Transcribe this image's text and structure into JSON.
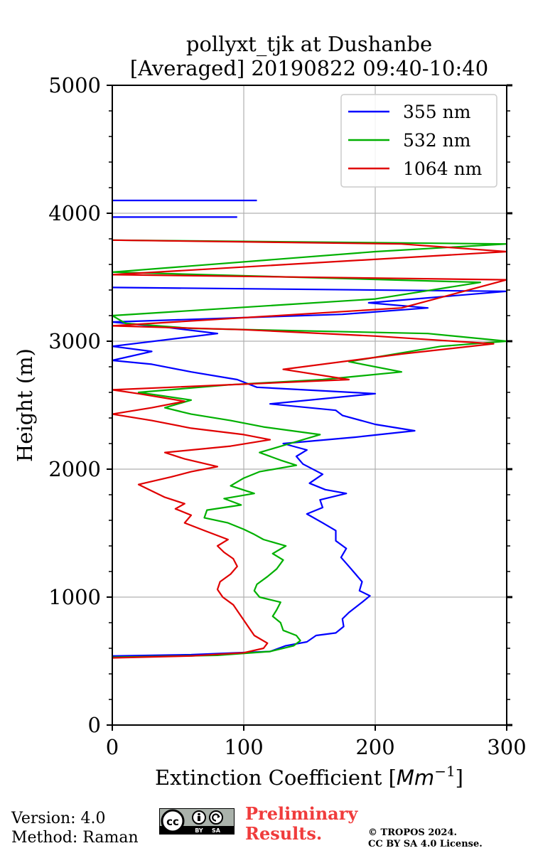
{
  "chart_data": {
    "type": "line",
    "title": "pollyxt_tjk at Dushanbe",
    "subtitle": "[Averaged] 20190822 09:40-10:40",
    "xlabel": "Extinction Coefficient",
    "xlabel_unit_base": "Mm",
    "xlabel_unit_exp": "−1",
    "ylabel": "Height (m)",
    "xlim": [
      0,
      300
    ],
    "ylim": [
      0,
      5000
    ],
    "xticks": [
      0,
      100,
      200,
      300
    ],
    "yticks": [
      0,
      1000,
      2000,
      3000,
      4000,
      5000
    ],
    "grid": true,
    "legend_position": "top-right",
    "series": [
      {
        "name": "355 nm",
        "color": "#0000ff",
        "points": [
          [
            0,
            540
          ],
          [
            60,
            550
          ],
          [
            120,
            575
          ],
          [
            132,
            620
          ],
          [
            148,
            650
          ],
          [
            155,
            700
          ],
          [
            170,
            720
          ],
          [
            176,
            770
          ],
          [
            175,
            830
          ],
          [
            180,
            880
          ],
          [
            190,
            960
          ],
          [
            196,
            1010
          ],
          [
            188,
            1050
          ],
          [
            190,
            1120
          ],
          [
            185,
            1180
          ],
          [
            180,
            1240
          ],
          [
            174,
            1310
          ],
          [
            178,
            1380
          ],
          [
            170,
            1440
          ],
          [
            170,
            1520
          ],
          [
            160,
            1580
          ],
          [
            148,
            1650
          ],
          [
            160,
            1700
          ],
          [
            158,
            1760
          ],
          [
            178,
            1810
          ],
          [
            162,
            1840
          ],
          [
            150,
            1890
          ],
          [
            160,
            1960
          ],
          [
            145,
            2040
          ],
          [
            140,
            2100
          ],
          [
            148,
            2150
          ],
          [
            130,
            2200
          ],
          [
            185,
            2250
          ],
          [
            230,
            2300
          ],
          [
            200,
            2350
          ],
          [
            175,
            2420
          ],
          [
            170,
            2460
          ],
          [
            120,
            2510
          ],
          [
            200,
            2590
          ],
          [
            110,
            2640
          ],
          [
            95,
            2700
          ],
          [
            60,
            2760
          ],
          [
            30,
            2820
          ],
          [
            0,
            2850
          ],
          [
            30,
            2920
          ],
          [
            0,
            2960
          ],
          [
            80,
            3060
          ],
          [
            40,
            3110
          ],
          [
            0,
            3150
          ],
          [
            175,
            3210
          ],
          [
            240,
            3260
          ],
          [
            195,
            3300
          ],
          [
            300,
            3390
          ],
          [
            0,
            3420
          ]
        ],
        "isolated_segments": [
          {
            "x": [
              0,
              95
            ],
            "y": 3970
          },
          {
            "x": [
              0,
              110
            ],
            "y": 4100
          }
        ]
      },
      {
        "name": "532 nm",
        "color": "#00b000",
        "points": [
          [
            0,
            530
          ],
          [
            80,
            545
          ],
          [
            120,
            575
          ],
          [
            138,
            620
          ],
          [
            143,
            660
          ],
          [
            140,
            700
          ],
          [
            130,
            740
          ],
          [
            128,
            800
          ],
          [
            122,
            850
          ],
          [
            125,
            900
          ],
          [
            128,
            960
          ],
          [
            112,
            1000
          ],
          [
            108,
            1050
          ],
          [
            110,
            1100
          ],
          [
            118,
            1160
          ],
          [
            125,
            1220
          ],
          [
            130,
            1290
          ],
          [
            122,
            1340
          ],
          [
            132,
            1400
          ],
          [
            115,
            1450
          ],
          [
            108,
            1490
          ],
          [
            100,
            1530
          ],
          [
            88,
            1580
          ],
          [
            70,
            1620
          ],
          [
            72,
            1680
          ],
          [
            98,
            1720
          ],
          [
            85,
            1770
          ],
          [
            108,
            1810
          ],
          [
            90,
            1870
          ],
          [
            100,
            1930
          ],
          [
            112,
            1980
          ],
          [
            140,
            2030
          ],
          [
            128,
            2070
          ],
          [
            112,
            2130
          ],
          [
            135,
            2200
          ],
          [
            158,
            2270
          ],
          [
            115,
            2330
          ],
          [
            90,
            2380
          ],
          [
            60,
            2430
          ],
          [
            40,
            2480
          ],
          [
            60,
            2540
          ],
          [
            20,
            2600
          ],
          [
            90,
            2660
          ],
          [
            160,
            2700
          ],
          [
            220,
            2760
          ],
          [
            180,
            2840
          ],
          [
            250,
            2960
          ],
          [
            300,
            3000
          ],
          [
            240,
            3060
          ],
          [
            60,
            3100
          ],
          [
            10,
            3140
          ],
          [
            0,
            3200
          ],
          [
            200,
            3330
          ],
          [
            280,
            3460
          ],
          [
            0,
            3540
          ],
          [
            200,
            3700
          ],
          [
            300,
            3760
          ],
          [
            0,
            3790
          ]
        ],
        "isolated_segments": []
      },
      {
        "name": "1064 nm",
        "color": "#e00000",
        "points": [
          [
            0,
            525
          ],
          [
            60,
            540
          ],
          [
            100,
            565
          ],
          [
            115,
            600
          ],
          [
            118,
            640
          ],
          [
            108,
            700
          ],
          [
            104,
            760
          ],
          [
            100,
            820
          ],
          [
            96,
            880
          ],
          [
            92,
            940
          ],
          [
            84,
            1000
          ],
          [
            80,
            1060
          ],
          [
            82,
            1120
          ],
          [
            90,
            1180
          ],
          [
            95,
            1240
          ],
          [
            92,
            1300
          ],
          [
            85,
            1350
          ],
          [
            80,
            1400
          ],
          [
            88,
            1450
          ],
          [
            70,
            1520
          ],
          [
            55,
            1580
          ],
          [
            60,
            1640
          ],
          [
            48,
            1690
          ],
          [
            55,
            1730
          ],
          [
            40,
            1780
          ],
          [
            30,
            1830
          ],
          [
            20,
            1880
          ],
          [
            45,
            1940
          ],
          [
            60,
            1980
          ],
          [
            80,
            2020
          ],
          [
            55,
            2080
          ],
          [
            40,
            2130
          ],
          [
            90,
            2180
          ],
          [
            120,
            2230
          ],
          [
            100,
            2270
          ],
          [
            60,
            2320
          ],
          [
            30,
            2380
          ],
          [
            0,
            2430
          ],
          [
            30,
            2480
          ],
          [
            55,
            2530
          ],
          [
            20,
            2590
          ],
          [
            0,
            2620
          ],
          [
            180,
            2700
          ],
          [
            130,
            2780
          ],
          [
            220,
            2900
          ],
          [
            290,
            2980
          ],
          [
            200,
            3040
          ],
          [
            100,
            3090
          ],
          [
            0,
            3120
          ],
          [
            220,
            3260
          ],
          [
            300,
            3480
          ],
          [
            0,
            3520
          ],
          [
            300,
            3700
          ],
          [
            220,
            3760
          ],
          [
            0,
            3790
          ]
        ],
        "isolated_segments": []
      }
    ]
  },
  "footer": {
    "version": "Version: 4.0",
    "method": "Method: Raman",
    "preliminary_line1": "Preliminary",
    "preliminary_line2": "Results.",
    "copyright_line1": "© TROPOS 2024.",
    "copyright_line2": "CC BY SA 4.0 License.",
    "cc_badge": {
      "icons": [
        "cc-icon",
        "by-icon",
        "sa-icon"
      ],
      "cc_text": "cc",
      "by_text": "BY",
      "sa_text": "SA"
    }
  }
}
